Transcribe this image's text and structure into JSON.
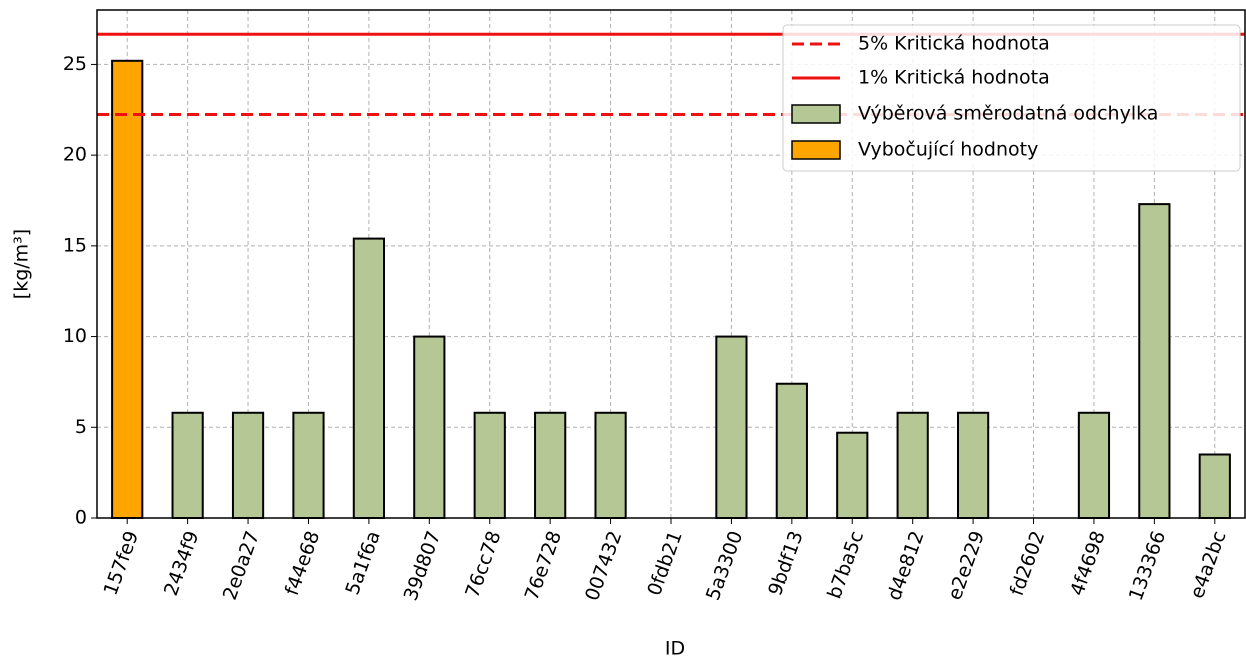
{
  "chart_data": {
    "type": "bar",
    "x_label": "ID",
    "y_label": "[kg/m³]",
    "categories": [
      "157fe9",
      "2434f9",
      "2e0a27",
      "f44e68",
      "5a1f6a",
      "39d807",
      "76cc78",
      "76e728",
      "007432",
      "0fdb21",
      "5a3300",
      "9bdf13",
      "b7ba5c",
      "d4e812",
      "e2e229",
      "fd2602",
      "4f4698",
      "133366",
      "e4a2bc"
    ],
    "series": [
      {
        "name": "Výběrová směrodatná odchylka",
        "color": "#b5c794",
        "values": [
          null,
          5.8,
          5.8,
          5.8,
          15.4,
          10.0,
          5.8,
          5.8,
          5.8,
          0,
          10.0,
          7.4,
          4.7,
          5.8,
          5.8,
          0,
          5.8,
          17.3,
          3.5
        ]
      },
      {
        "name": "Vybočující hodnoty",
        "color": "#ffa500",
        "values": [
          25.2,
          null,
          null,
          null,
          null,
          null,
          null,
          null,
          null,
          null,
          null,
          null,
          null,
          null,
          null,
          null,
          null,
          null,
          null
        ]
      }
    ],
    "reference_lines": [
      {
        "name": "5% Kritická hodnota",
        "value": 22.24,
        "color": "#ee1111",
        "style": "dashed"
      },
      {
        "name": "1% Kritická hodnota",
        "value": 26.66,
        "color": "#ee1111",
        "style": "solid"
      }
    ],
    "ylim": [
      0,
      28
    ],
    "yticks": [
      0,
      5,
      10,
      15,
      20,
      25
    ],
    "grid": true,
    "legend": "upper right"
  }
}
